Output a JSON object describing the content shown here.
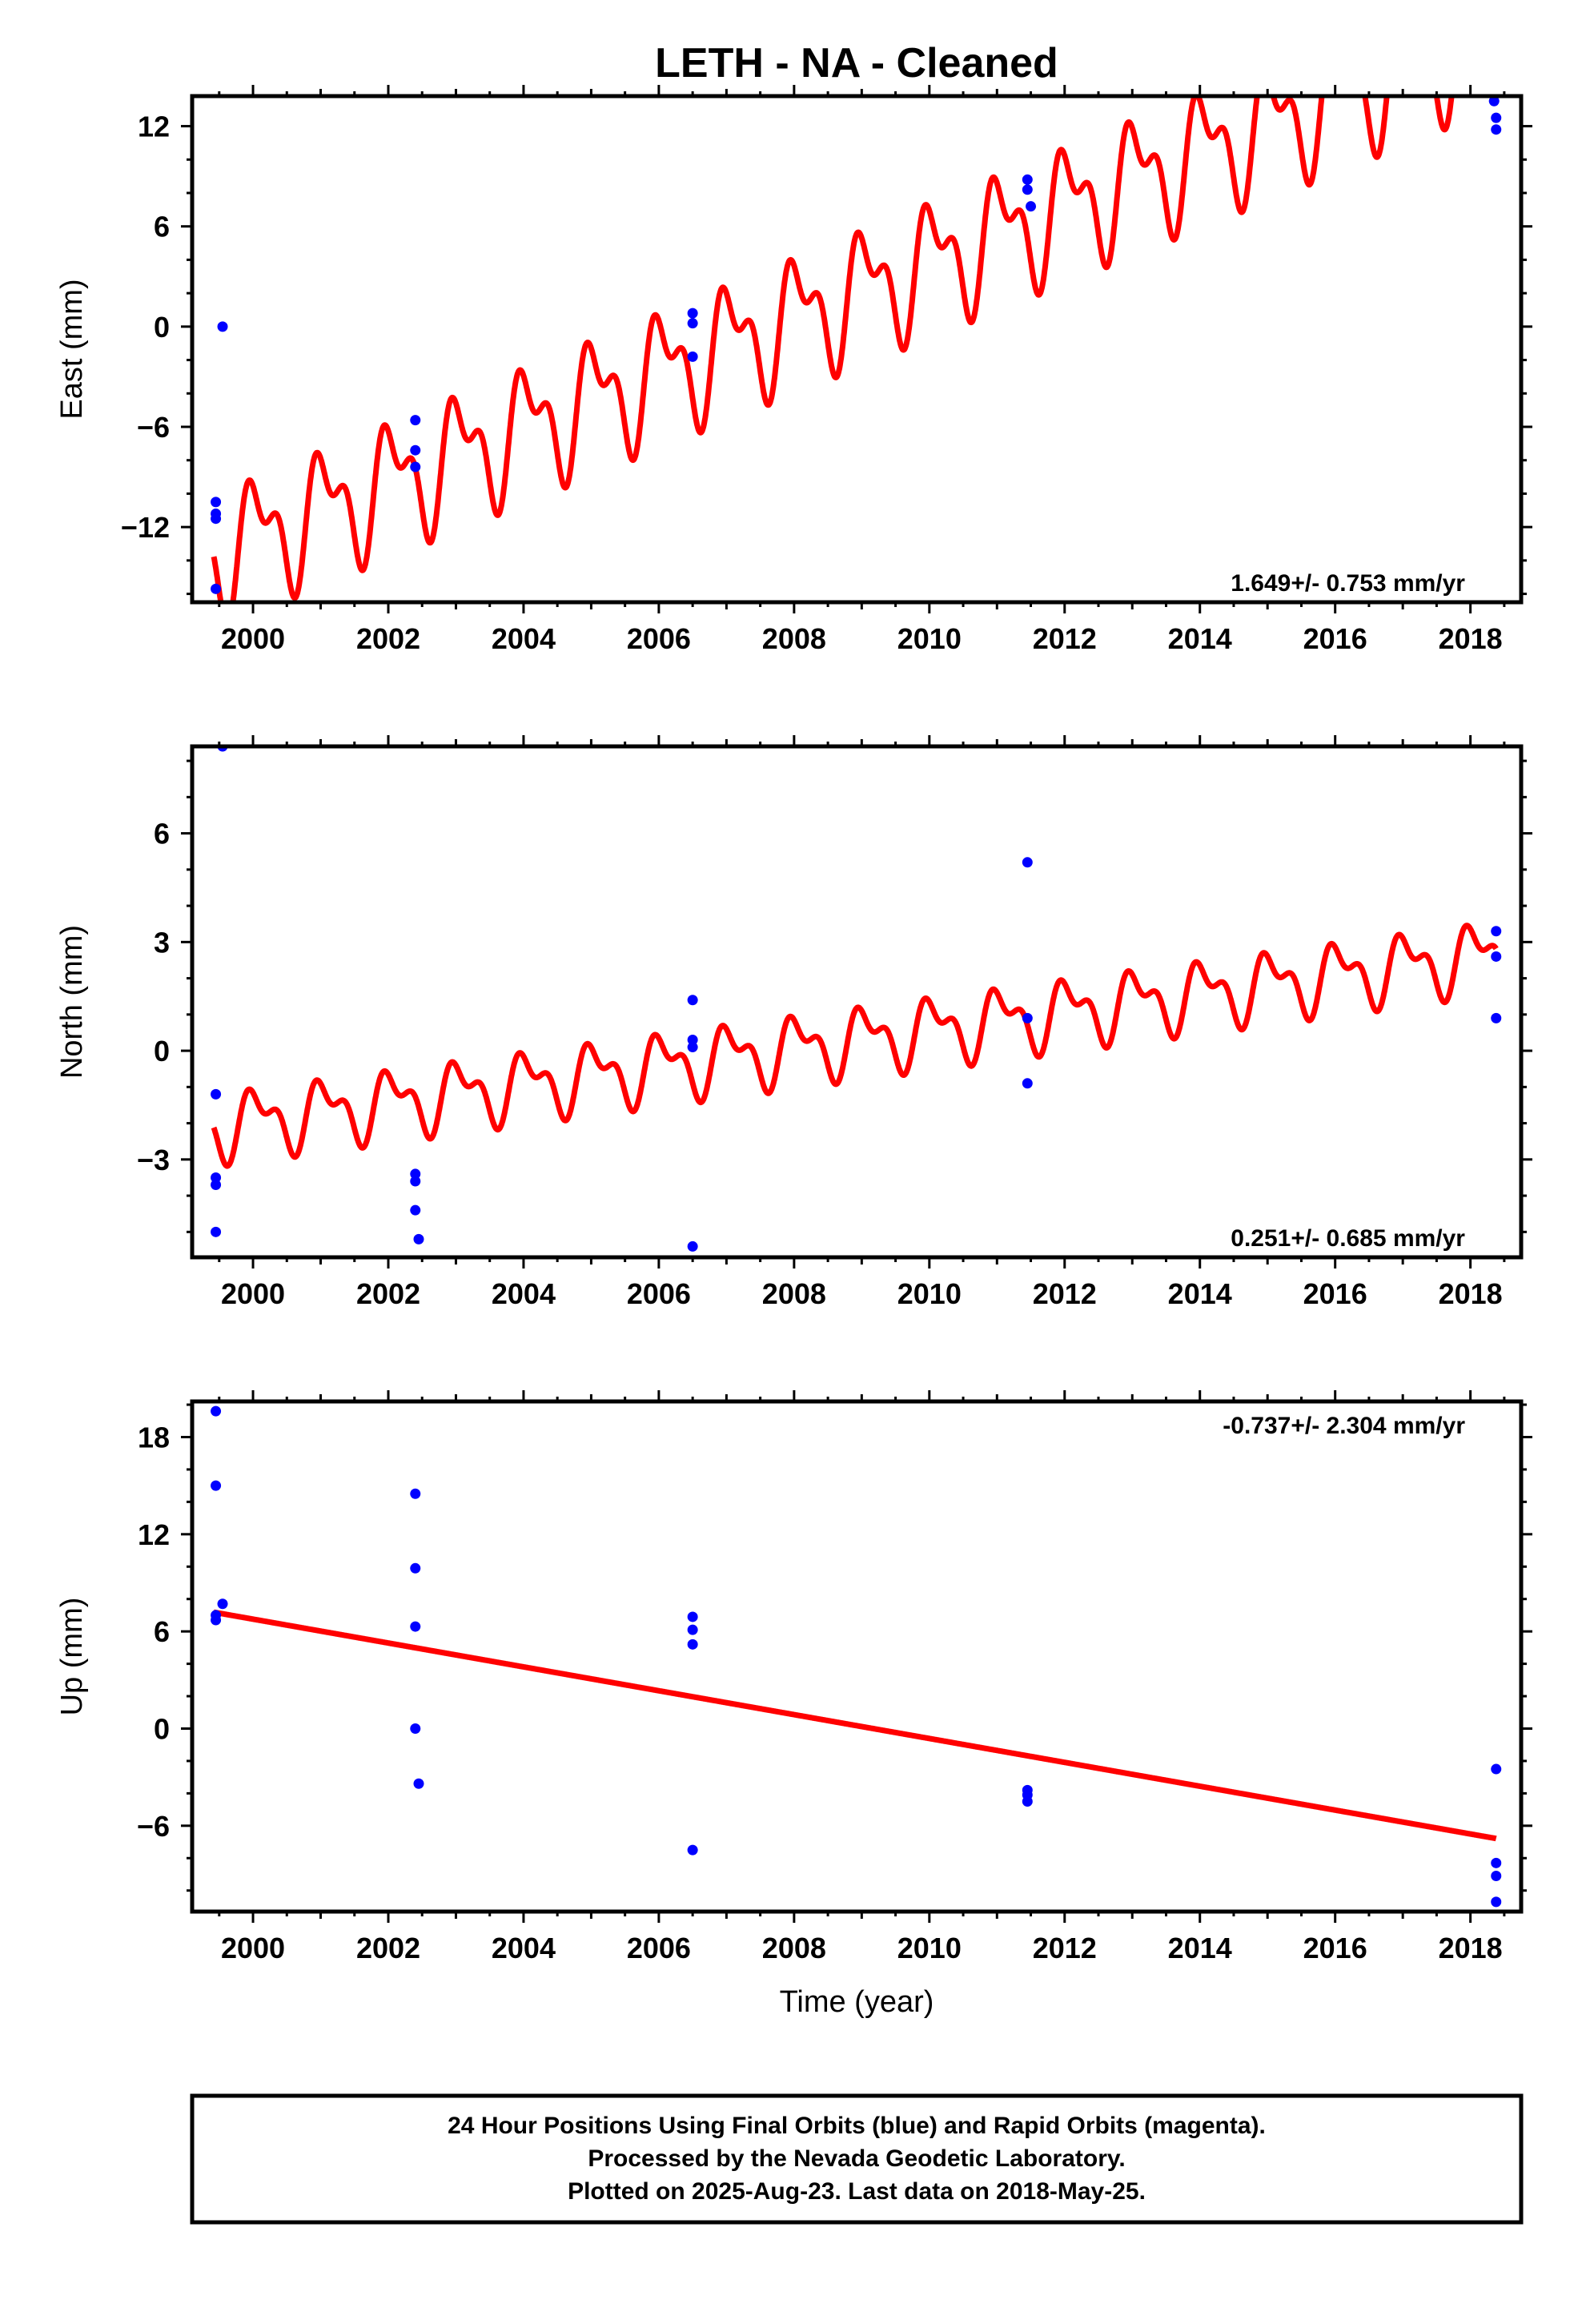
{
  "chart_data": {
    "type": "scatter",
    "title": "LETH  - NA - Cleaned",
    "xlabel": "Time (year)",
    "xlim": [
      1999.1,
      2018.75
    ],
    "xticks": [
      2000,
      2002,
      2004,
      2006,
      2008,
      2010,
      2012,
      2014,
      2016,
      2018
    ],
    "colors": {
      "points": "#0000ff",
      "model": "#ff0000"
    },
    "panels": [
      {
        "key": "east",
        "ylabel": "East (mm)",
        "ylim": [
          -16.5,
          13.8
        ],
        "yticks": [
          12,
          6,
          0,
          -6,
          -12
        ],
        "ytick_labels": [
          "12",
          "6",
          "0",
          "−6",
          "−12"
        ],
        "rate_text": "1.649+/- 0.753 mm/yr",
        "rate_position": "bottom-right",
        "model": {
          "offset": -13.7,
          "slope": 1.649,
          "annual": 3.0,
          "semiannual": 1.8,
          "phase": 1.15
        },
        "points": [
          [
            1999.45,
            -10.5
          ],
          [
            1999.45,
            -11.2
          ],
          [
            1999.45,
            -11.5
          ],
          [
            1999.45,
            -15.7
          ],
          [
            1999.55,
            0.0
          ],
          [
            2002.4,
            -5.6
          ],
          [
            2002.4,
            -7.4
          ],
          [
            2002.4,
            -8.4
          ],
          [
            2006.5,
            0.8
          ],
          [
            2006.5,
            0.2
          ],
          [
            2006.5,
            -1.8
          ],
          [
            2011.45,
            8.8
          ],
          [
            2011.45,
            8.2
          ],
          [
            2011.5,
            7.2
          ],
          [
            2018.35,
            13.5
          ],
          [
            2018.38,
            12.5
          ],
          [
            2018.38,
            11.8
          ]
        ]
      },
      {
        "key": "north",
        "ylabel": "North (mm)",
        "ylim": [
          -5.7,
          8.4
        ],
        "yticks": [
          6,
          3,
          0,
          -3
        ],
        "ytick_labels": [
          "6",
          "3",
          "0",
          "−3"
        ],
        "rate_text": "0.251+/- 0.685 mm/yr",
        "rate_position": "bottom-right",
        "model": {
          "offset": -2.1,
          "slope": 0.251,
          "annual": 0.75,
          "semiannual": 0.45,
          "phase": 1.15
        },
        "points": [
          [
            1999.45,
            -1.2
          ],
          [
            1999.45,
            -3.5
          ],
          [
            1999.45,
            -3.7
          ],
          [
            1999.45,
            -5.0
          ],
          [
            1999.55,
            8.4
          ],
          [
            2002.4,
            -3.4
          ],
          [
            2002.4,
            -3.6
          ],
          [
            2002.4,
            -4.4
          ],
          [
            2002.45,
            -5.2
          ],
          [
            2006.5,
            1.4
          ],
          [
            2006.5,
            0.3
          ],
          [
            2006.5,
            0.1
          ],
          [
            2006.5,
            -5.4
          ],
          [
            2011.45,
            5.2
          ],
          [
            2011.45,
            0.9
          ],
          [
            2011.45,
            -0.9
          ],
          [
            2018.38,
            3.3
          ],
          [
            2018.38,
            2.6
          ],
          [
            2018.38,
            0.9
          ]
        ]
      },
      {
        "key": "up",
        "ylabel": "Up (mm)",
        "ylim": [
          -11.3,
          20.2
        ],
        "yticks": [
          18,
          12,
          6,
          0,
          -6
        ],
        "ytick_labels": [
          "18",
          "12",
          "6",
          "0",
          "−6"
        ],
        "rate_text": "-0.737+/- 2.304 mm/yr",
        "rate_position": "top-right",
        "model": {
          "offset": 7.2,
          "slope": -0.737,
          "annual": 0.0,
          "semiannual": 0.0,
          "phase": 0.0
        },
        "points": [
          [
            1999.45,
            19.6
          ],
          [
            1999.45,
            15.0
          ],
          [
            1999.45,
            7.0
          ],
          [
            1999.45,
            6.7
          ],
          [
            1999.55,
            7.7
          ],
          [
            2002.4,
            14.5
          ],
          [
            2002.4,
            9.9
          ],
          [
            2002.4,
            6.3
          ],
          [
            2002.4,
            0.0
          ],
          [
            2002.45,
            -3.4
          ],
          [
            2006.5,
            6.9
          ],
          [
            2006.5,
            6.1
          ],
          [
            2006.5,
            5.2
          ],
          [
            2006.5,
            -7.5
          ],
          [
            2011.45,
            -3.8
          ],
          [
            2011.45,
            -4.1
          ],
          [
            2011.45,
            -4.5
          ],
          [
            2018.38,
            -2.5
          ],
          [
            2018.38,
            -8.3
          ],
          [
            2018.38,
            -9.1
          ],
          [
            2018.38,
            -10.7
          ]
        ]
      }
    ]
  },
  "footer": {
    "lines": [
      "24 Hour Positions Using Final Orbits (blue) and Rapid Orbits (magenta).",
      "Processed by the Nevada Geodetic Laboratory.",
      "Plotted on 2025-Aug-23. Last data on 2018-May-25."
    ]
  }
}
